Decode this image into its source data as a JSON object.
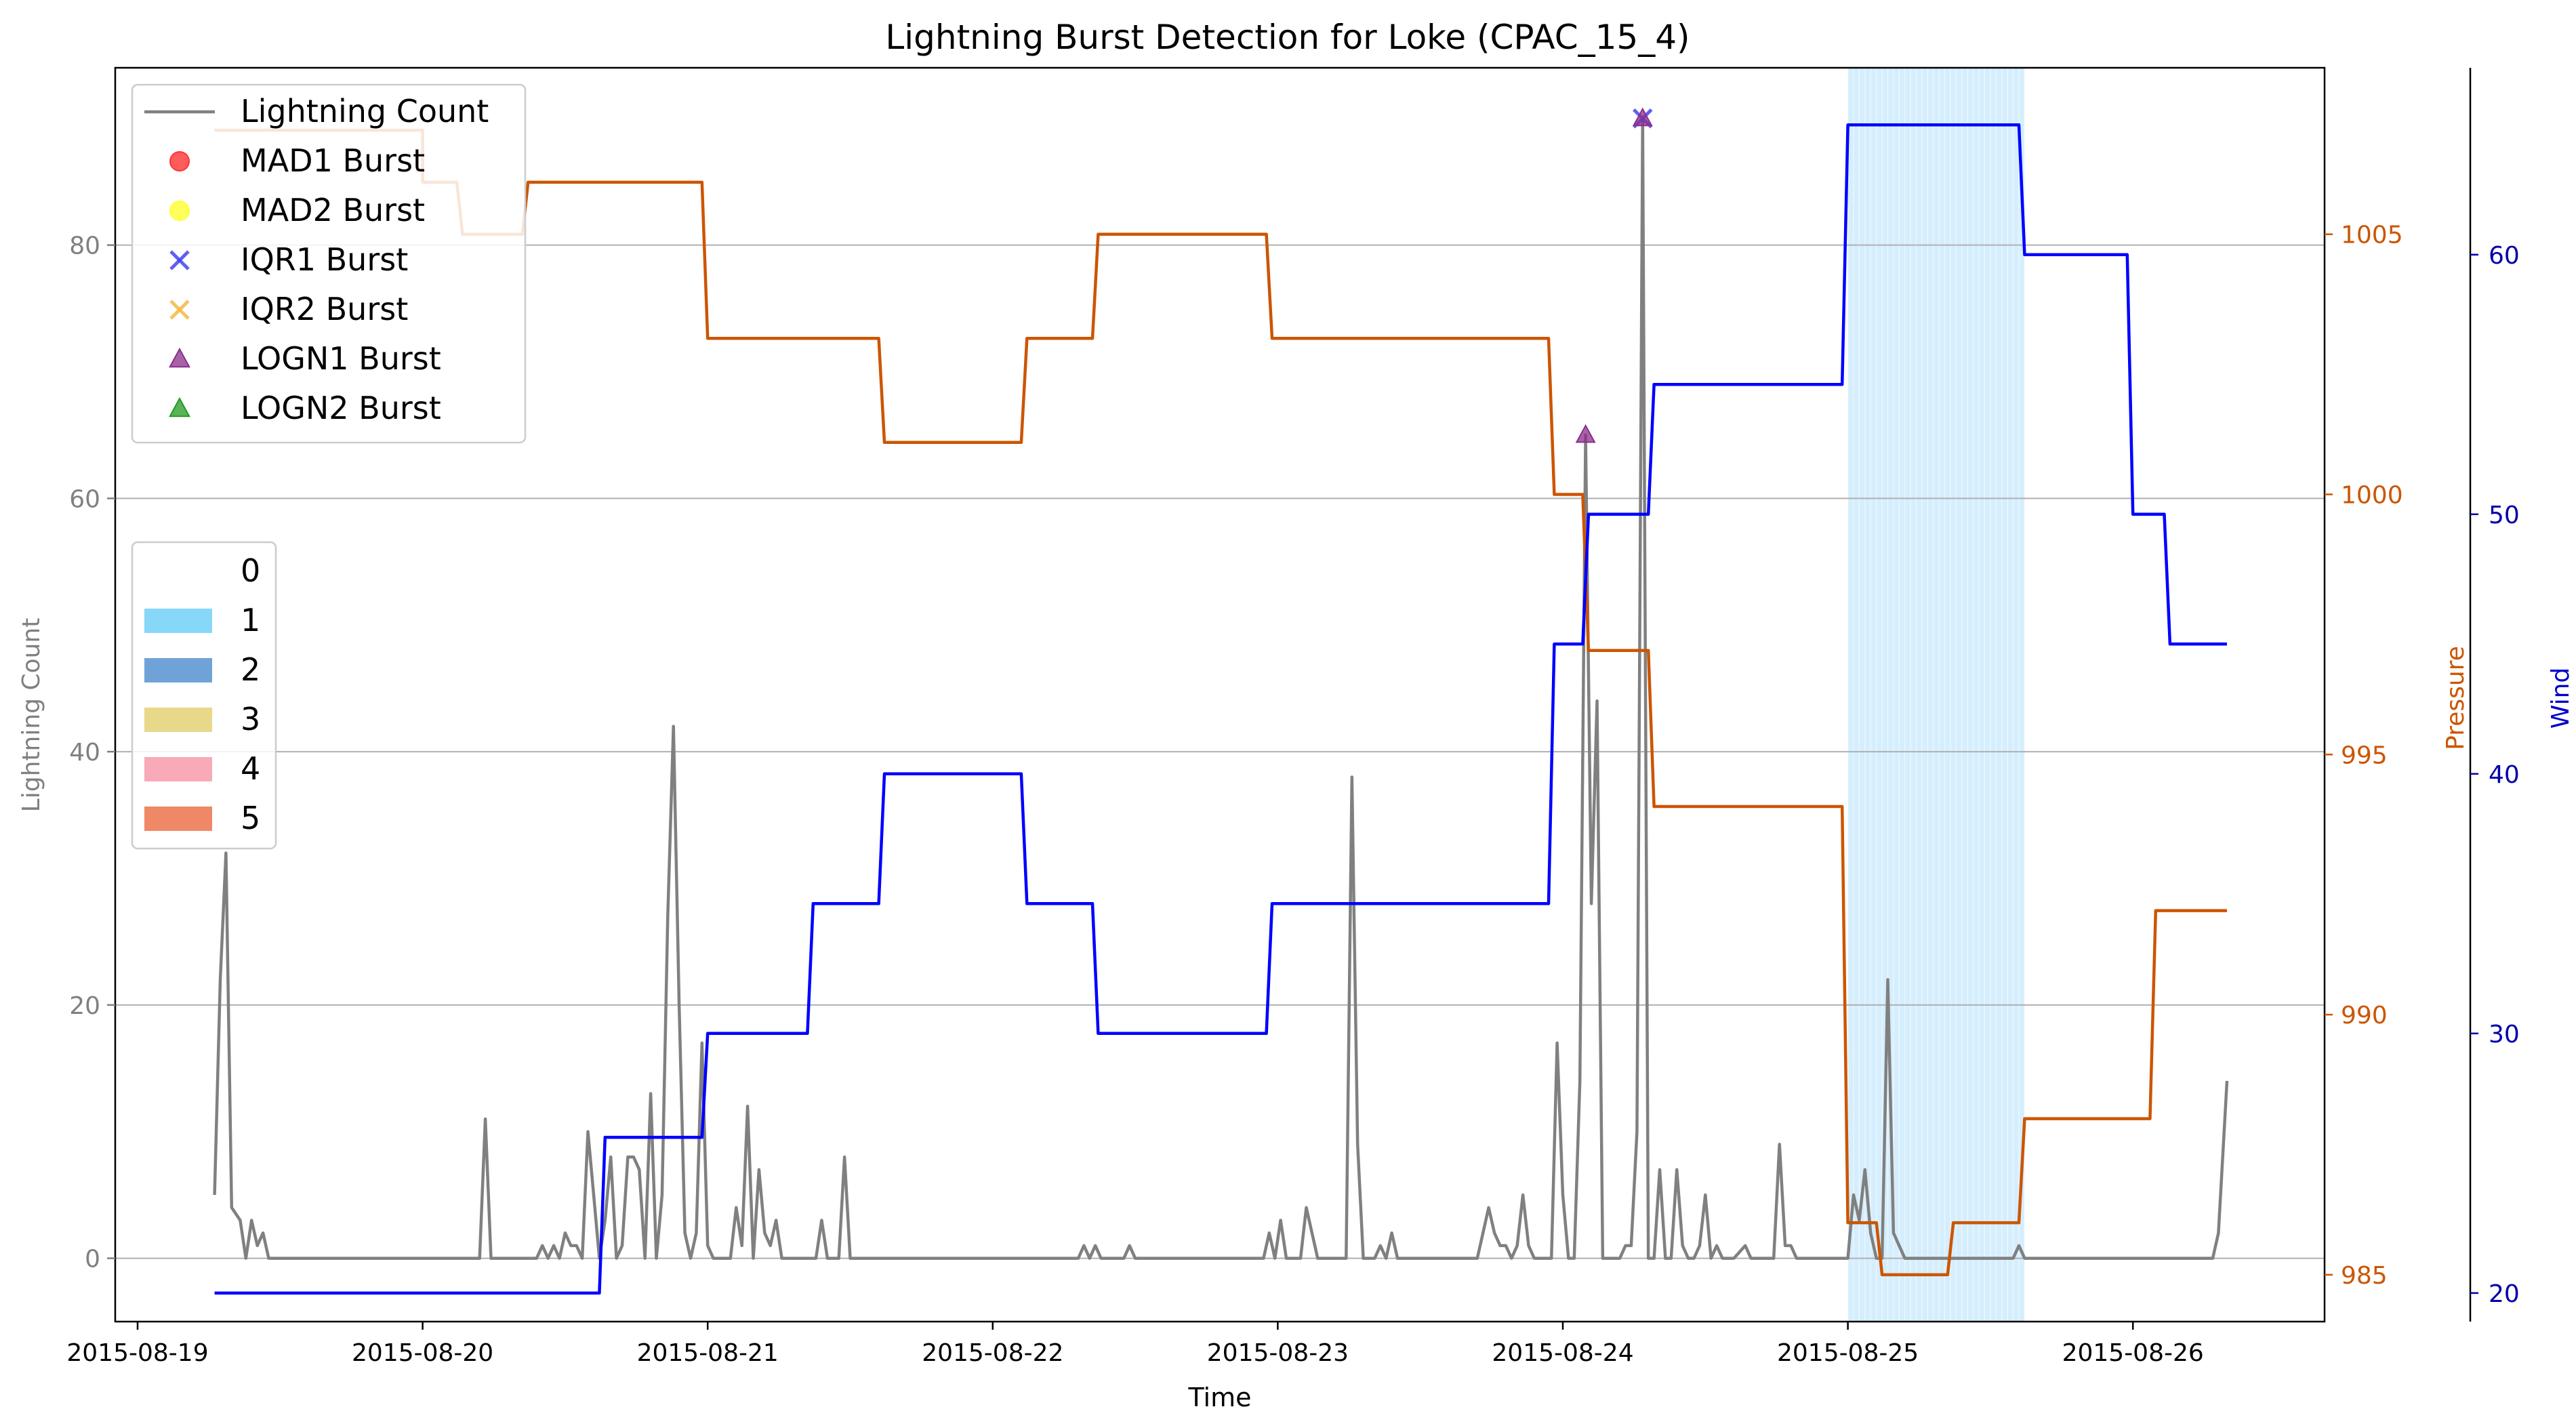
{
  "chart_data": {
    "type": "line",
    "title": "Lightning Burst Detection for Loke (CPAC_15_4)",
    "xlabel": "Time",
    "x_ticks": [
      "2015-08-19",
      "2015-08-20",
      "2015-08-21",
      "2015-08-22",
      "2015-08-23",
      "2015-08-24",
      "2015-08-25",
      "2015-08-26"
    ],
    "axes": {
      "lightning": {
        "label": "Lightning Count",
        "ylim": [
          -5,
          94
        ],
        "ticks": [
          0,
          20,
          40,
          60,
          80
        ],
        "color": "#808080"
      },
      "pressure": {
        "label": "Pressure",
        "ylim": [
          984.1,
          1008.2
        ],
        "ticks": [
          985,
          990,
          995,
          1000,
          1005
        ],
        "color": "#cc5500"
      },
      "wind": {
        "label": "Wind",
        "ylim": [
          18.9,
          67.2
        ],
        "ticks": [
          20,
          30,
          40,
          50,
          60
        ],
        "color": "#0000cc"
      }
    },
    "xlim_days": [
      -0.08,
      7.6
    ],
    "grid": "horizontal",
    "lightning_count": {
      "name": "Lightning Count",
      "color": "#808080",
      "points": [
        [
          0.27,
          5
        ],
        [
          0.29,
          22
        ],
        [
          0.31,
          32
        ],
        [
          0.33,
          4
        ],
        [
          0.36,
          3
        ],
        [
          0.38,
          0
        ],
        [
          0.4,
          3
        ],
        [
          0.42,
          1
        ],
        [
          0.44,
          2
        ],
        [
          0.46,
          0
        ],
        [
          0.48,
          0
        ],
        [
          1.2,
          0
        ],
        [
          1.22,
          11
        ],
        [
          1.24,
          0
        ],
        [
          1.4,
          0
        ],
        [
          1.42,
          1
        ],
        [
          1.44,
          0
        ],
        [
          1.46,
          1
        ],
        [
          1.48,
          0
        ],
        [
          1.5,
          2
        ],
        [
          1.52,
          1
        ],
        [
          1.54,
          1
        ],
        [
          1.56,
          0
        ],
        [
          1.58,
          10
        ],
        [
          1.6,
          5
        ],
        [
          1.62,
          0
        ],
        [
          1.64,
          3
        ],
        [
          1.66,
          8
        ],
        [
          1.68,
          0
        ],
        [
          1.7,
          1
        ],
        [
          1.72,
          8
        ],
        [
          1.74,
          8
        ],
        [
          1.76,
          7
        ],
        [
          1.78,
          0
        ],
        [
          1.8,
          13
        ],
        [
          1.82,
          0
        ],
        [
          1.84,
          5
        ],
        [
          1.86,
          27
        ],
        [
          1.88,
          42
        ],
        [
          1.9,
          20
        ],
        [
          1.92,
          2
        ],
        [
          1.94,
          0
        ],
        [
          1.96,
          2
        ],
        [
          1.98,
          17
        ],
        [
          2.0,
          1
        ],
        [
          2.02,
          0
        ],
        [
          2.04,
          0
        ],
        [
          2.06,
          0
        ],
        [
          2.08,
          0
        ],
        [
          2.1,
          4
        ],
        [
          2.12,
          1
        ],
        [
          2.14,
          12
        ],
        [
          2.16,
          0
        ],
        [
          2.18,
          7
        ],
        [
          2.2,
          2
        ],
        [
          2.22,
          1
        ],
        [
          2.24,
          3
        ],
        [
          2.26,
          0
        ],
        [
          2.3,
          0
        ],
        [
          2.34,
          0
        ],
        [
          2.36,
          0
        ],
        [
          2.38,
          0
        ],
        [
          2.4,
          3
        ],
        [
          2.42,
          0
        ],
        [
          2.46,
          0
        ],
        [
          2.48,
          8
        ],
        [
          2.5,
          0
        ],
        [
          3.3,
          0
        ],
        [
          3.32,
          1
        ],
        [
          3.34,
          0
        ],
        [
          3.36,
          1
        ],
        [
          3.38,
          0
        ],
        [
          3.46,
          0
        ],
        [
          3.48,
          1
        ],
        [
          3.5,
          0
        ],
        [
          3.95,
          0
        ],
        [
          3.97,
          2
        ],
        [
          3.99,
          0
        ],
        [
          4.01,
          3
        ],
        [
          4.03,
          0
        ],
        [
          4.05,
          0
        ],
        [
          4.08,
          0
        ],
        [
          4.1,
          4
        ],
        [
          4.12,
          2
        ],
        [
          4.14,
          0
        ],
        [
          4.24,
          0
        ],
        [
          4.26,
          38
        ],
        [
          4.28,
          9
        ],
        [
          4.3,
          0
        ],
        [
          4.34,
          0
        ],
        [
          4.36,
          1
        ],
        [
          4.38,
          0
        ],
        [
          4.4,
          2
        ],
        [
          4.42,
          0
        ],
        [
          4.7,
          0
        ],
        [
          4.72,
          2
        ],
        [
          4.74,
          4
        ],
        [
          4.76,
          2
        ],
        [
          4.78,
          1
        ],
        [
          4.8,
          1
        ],
        [
          4.82,
          0
        ],
        [
          4.84,
          1
        ],
        [
          4.86,
          5
        ],
        [
          4.88,
          1
        ],
        [
          4.9,
          0
        ],
        [
          4.96,
          0
        ],
        [
          4.98,
          17
        ],
        [
          5.0,
          5
        ],
        [
          5.02,
          0
        ],
        [
          5.04,
          0
        ],
        [
          5.06,
          14
        ],
        [
          5.08,
          65
        ],
        [
          5.1,
          28
        ],
        [
          5.12,
          44
        ],
        [
          5.14,
          0
        ],
        [
          5.16,
          0
        ],
        [
          5.18,
          0
        ],
        [
          5.2,
          0
        ],
        [
          5.22,
          1
        ],
        [
          5.24,
          1
        ],
        [
          5.26,
          10
        ],
        [
          5.28,
          90
        ],
        [
          5.3,
          0
        ],
        [
          5.32,
          0
        ],
        [
          5.34,
          7
        ],
        [
          5.36,
          0
        ],
        [
          5.38,
          0
        ],
        [
          5.4,
          7
        ],
        [
          5.42,
          1
        ],
        [
          5.44,
          0
        ],
        [
          5.46,
          0
        ],
        [
          5.48,
          1
        ],
        [
          5.5,
          5
        ],
        [
          5.52,
          0
        ],
        [
          5.54,
          1
        ],
        [
          5.56,
          0
        ],
        [
          5.6,
          0
        ],
        [
          5.64,
          1
        ],
        [
          5.66,
          0
        ],
        [
          5.74,
          0
        ],
        [
          5.76,
          9
        ],
        [
          5.78,
          1
        ],
        [
          5.8,
          1
        ],
        [
          5.82,
          0
        ],
        [
          5.84,
          0
        ],
        [
          6.0,
          0
        ],
        [
          6.02,
          5
        ],
        [
          6.04,
          3
        ],
        [
          6.06,
          7
        ],
        [
          6.08,
          2
        ],
        [
          6.1,
          0
        ],
        [
          6.12,
          0
        ],
        [
          6.14,
          22
        ],
        [
          6.16,
          2
        ],
        [
          6.18,
          1
        ],
        [
          6.2,
          0
        ],
        [
          6.22,
          0
        ],
        [
          6.58,
          0
        ],
        [
          6.6,
          1
        ],
        [
          6.62,
          0
        ],
        [
          7.28,
          0
        ],
        [
          7.3,
          2
        ],
        [
          7.33,
          14
        ]
      ]
    },
    "pressure": {
      "name": "Pressure",
      "color": "#cc5500",
      "points": [
        [
          0.27,
          1007.0
        ],
        [
          1.0,
          1007.0
        ],
        [
          1.0,
          1006.0
        ],
        [
          1.12,
          1006.0
        ],
        [
          1.14,
          1005.0
        ],
        [
          1.35,
          1005.0
        ],
        [
          1.37,
          1006.0
        ],
        [
          1.98,
          1006.0
        ],
        [
          2.0,
          1003.0
        ],
        [
          2.6,
          1003.0
        ],
        [
          2.62,
          1001.0
        ],
        [
          3.1,
          1001.0
        ],
        [
          3.12,
          1003.0
        ],
        [
          3.35,
          1003.0
        ],
        [
          3.37,
          1005.0
        ],
        [
          3.96,
          1005.0
        ],
        [
          3.98,
          1003.0
        ],
        [
          4.95,
          1003.0
        ],
        [
          4.97,
          1000.0
        ],
        [
          5.07,
          1000.0
        ],
        [
          5.09,
          997.0
        ],
        [
          5.3,
          997.0
        ],
        [
          5.32,
          994.0
        ],
        [
          5.98,
          994.0
        ],
        [
          6.0,
          986.0
        ],
        [
          6.1,
          986.0
        ],
        [
          6.12,
          985.0
        ],
        [
          6.35,
          985.0
        ],
        [
          6.37,
          986.0
        ],
        [
          6.6,
          986.0
        ],
        [
          6.62,
          988.0
        ],
        [
          7.06,
          988.0
        ],
        [
          7.08,
          992.0
        ],
        [
          7.33,
          992.0
        ]
      ]
    },
    "wind": {
      "name": "Wind",
      "color": "#0000ff",
      "points": [
        [
          0.27,
          20
        ],
        [
          1.62,
          20
        ],
        [
          1.64,
          26
        ],
        [
          1.98,
          26
        ],
        [
          2.0,
          30
        ],
        [
          2.35,
          30
        ],
        [
          2.37,
          35
        ],
        [
          2.6,
          35
        ],
        [
          2.62,
          40
        ],
        [
          3.1,
          40
        ],
        [
          3.12,
          35
        ],
        [
          3.35,
          35
        ],
        [
          3.37,
          30
        ],
        [
          3.96,
          30
        ],
        [
          3.98,
          35
        ],
        [
          4.95,
          35
        ],
        [
          4.97,
          45
        ],
        [
          5.07,
          45
        ],
        [
          5.09,
          50
        ],
        [
          5.3,
          50
        ],
        [
          5.32,
          55
        ],
        [
          5.98,
          55
        ],
        [
          6.0,
          65
        ],
        [
          6.6,
          65
        ],
        [
          6.62,
          60
        ],
        [
          6.98,
          60
        ],
        [
          7.0,
          50
        ],
        [
          7.11,
          50
        ],
        [
          7.13,
          45
        ],
        [
          7.33,
          45
        ]
      ]
    },
    "category_shading": {
      "category": "1",
      "x_range": [
        6.0,
        6.62
      ],
      "color": "#87cefa"
    },
    "bursts": [
      {
        "method": "IQR1 Burst",
        "x": 5.28,
        "y": 90
      },
      {
        "method": "LOGN1 Burst",
        "x": 5.08,
        "y": 65
      },
      {
        "method": "LOGN1 Burst",
        "x": 5.28,
        "y": 90
      }
    ],
    "legend_top": [
      {
        "label": "Lightning Count",
        "kind": "line",
        "color": "#808080"
      },
      {
        "label": "MAD1 Burst",
        "kind": "circle",
        "color": "#ff3333"
      },
      {
        "label": "MAD2 Burst",
        "kind": "circle",
        "color": "#ffff33"
      },
      {
        "label": "IQR1 Burst",
        "kind": "x",
        "color": "#4444ee"
      },
      {
        "label": "IQR2 Burst",
        "kind": "x",
        "color": "#f5b942"
      },
      {
        "label": "LOGN1 Burst",
        "kind": "triangle",
        "color": "#8b2f8b"
      },
      {
        "label": "LOGN2 Burst",
        "kind": "triangle",
        "color": "#229922"
      }
    ],
    "legend_top_placement": "top-left",
    "legend_categories": [
      {
        "label": "0",
        "color": "#ffffff"
      },
      {
        "label": "1",
        "color": "#87d8f8"
      },
      {
        "label": "2",
        "color": "#6fa3d8"
      },
      {
        "label": "3",
        "color": "#e8d88a"
      },
      {
        "label": "4",
        "color": "#f8aab8"
      },
      {
        "label": "5",
        "color": "#ee8866"
      }
    ],
    "legend_categories_placement": "left"
  }
}
